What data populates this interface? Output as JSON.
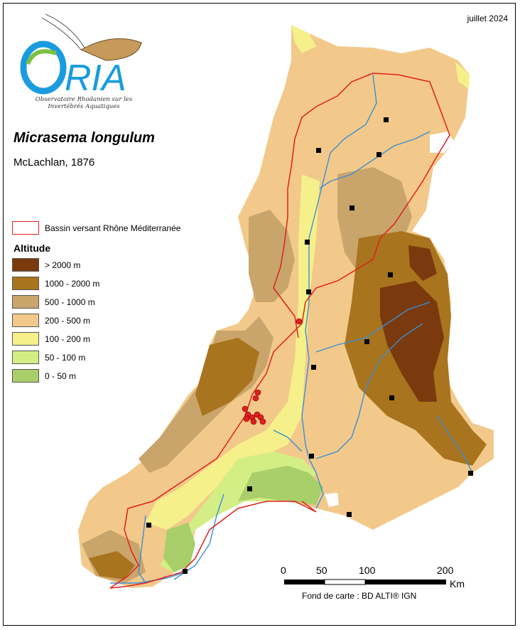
{
  "date": "juillet 2024",
  "logo": {
    "name": "ORIA",
    "subtitle_line1": "Observatoire Rhodanien sur les",
    "subtitle_line2": "Invertébrés Aquatiques"
  },
  "species": "Micrasema longulum",
  "author": "McLachlan, 1876",
  "legend": {
    "basin_label": "Bassin versant Rhône Méditerranée",
    "altitude_title": "Altitude",
    "classes": [
      {
        "label": "> 2000 m",
        "color": "#7a3a0e"
      },
      {
        "label": "1000 - 2000 m",
        "color": "#a8741d"
      },
      {
        "label": "500 - 1000 m",
        "color": "#c9a56c"
      },
      {
        "label": "200 - 500 m",
        "color": "#f2c98a"
      },
      {
        "label": "100 - 200 m",
        "color": "#f5f08a"
      },
      {
        "label": "50 - 100 m",
        "color": "#d4ee86"
      },
      {
        "label": "0 - 50 m",
        "color": "#a8cf6a"
      }
    ]
  },
  "scale": {
    "ticks": [
      "0",
      "50",
      "100",
      "200"
    ],
    "unit": "Km"
  },
  "source": "Fond de carte : BD ALTI® IGN",
  "colors": {
    "basin_outline": "#e0201c",
    "river": "#3a8fd6",
    "observation": "#e02020",
    "city": "#000000"
  }
}
